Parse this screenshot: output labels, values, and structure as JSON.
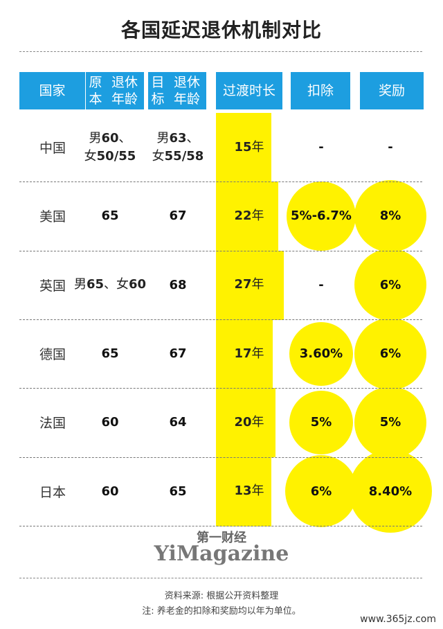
{
  "title": "各国延迟退休机制对比",
  "chart_data": {
    "type": "table",
    "headers": [
      {
        "lines": [
          "国家"
        ]
      },
      {
        "lines": [
          "原本",
          "退休年龄"
        ]
      },
      {
        "lines": [
          "目标",
          "退休年龄"
        ]
      },
      {
        "lines": [
          "过渡时长"
        ]
      },
      {
        "lines": [
          "扣除"
        ]
      },
      {
        "lines": [
          "奖励"
        ]
      }
    ],
    "rows": [
      {
        "country": "中国",
        "original": [
          "男60、",
          "女50/55"
        ],
        "target": [
          "男63、",
          "女55/58"
        ],
        "transition": "15年",
        "deduction": "-",
        "reward": "-"
      },
      {
        "country": "美国",
        "original": [
          "65"
        ],
        "target": [
          "67"
        ],
        "transition": "22年",
        "deduction": "5%-6.7%",
        "reward": "8%"
      },
      {
        "country": "英国",
        "original": [
          "男65、女60"
        ],
        "target": [
          "68"
        ],
        "transition": "27年",
        "deduction": "-",
        "reward": "6%"
      },
      {
        "country": "德国",
        "original": [
          "65"
        ],
        "target": [
          "67"
        ],
        "transition": "17年",
        "deduction": "3.60%",
        "reward": "6%"
      },
      {
        "country": "法国",
        "original": [
          "60"
        ],
        "target": [
          "64"
        ],
        "transition": "20年",
        "deduction": "5%",
        "reward": "5%"
      },
      {
        "country": "日本",
        "original": [
          "60"
        ],
        "target": [
          "65"
        ],
        "transition": "13年",
        "deduction": "6%",
        "reward": "8.40%"
      }
    ]
  },
  "logo": {
    "cn": "第一财经",
    "en": "YiMagazine"
  },
  "notes": [
    "资料来源: 根据公开资料整理",
    "注: 养老金的扣除和奖励均以年为单位。"
  ],
  "watermark": "www.365jz.com",
  "colors": {
    "header": "#1d9ee0",
    "highlight": "#fff200"
  }
}
